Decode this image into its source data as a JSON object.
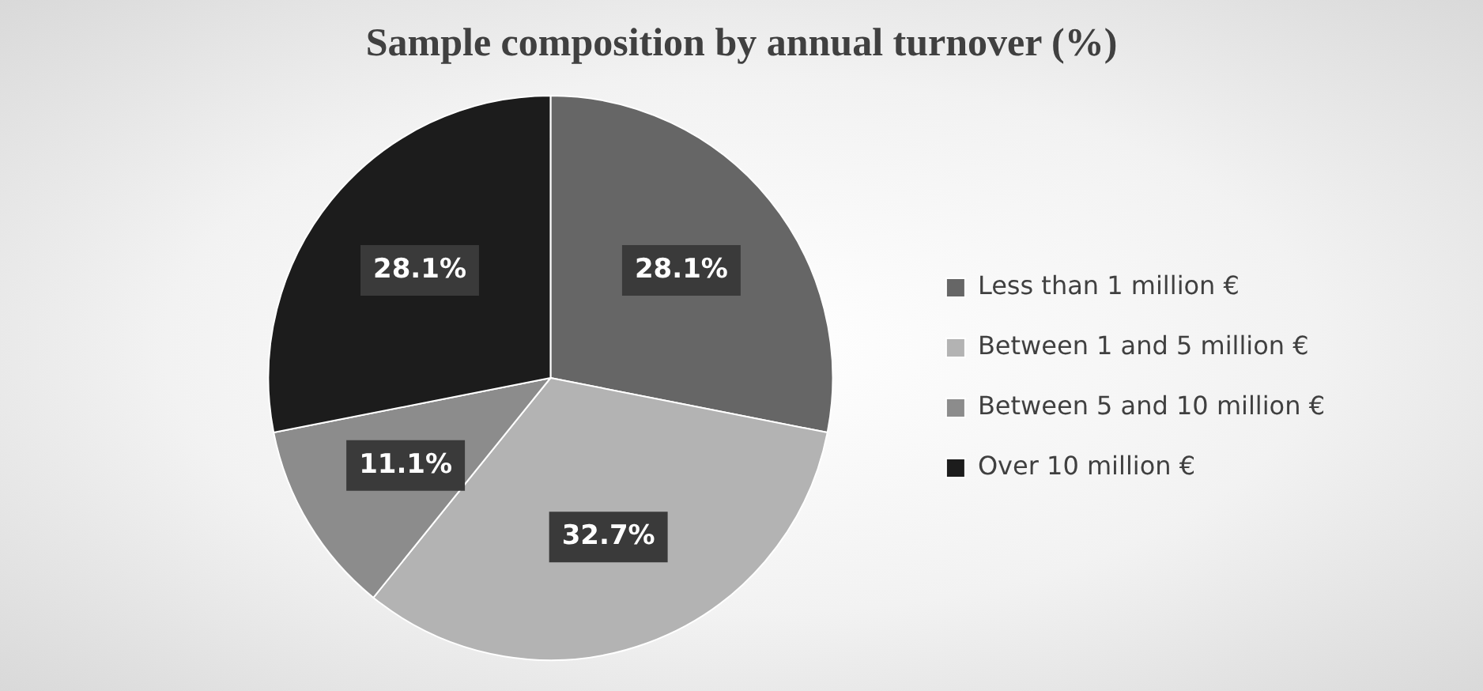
{
  "chart_data": {
    "type": "pie",
    "title": "Sample composition by annual turnover (%)",
    "categories": [
      "Less than 1 million €",
      "Between 1 and 5 million €",
      "Between 5 and 10 million €",
      "Over 10 million €"
    ],
    "values": [
      28.1,
      32.7,
      11.1,
      28.1
    ],
    "value_labels": [
      "28.1%",
      "32.7%",
      "11.1%",
      "28.1%"
    ],
    "colors": [
      "#666666",
      "#b3b3b3",
      "#8c8c8c",
      "#1c1c1c"
    ],
    "legend": "right"
  }
}
